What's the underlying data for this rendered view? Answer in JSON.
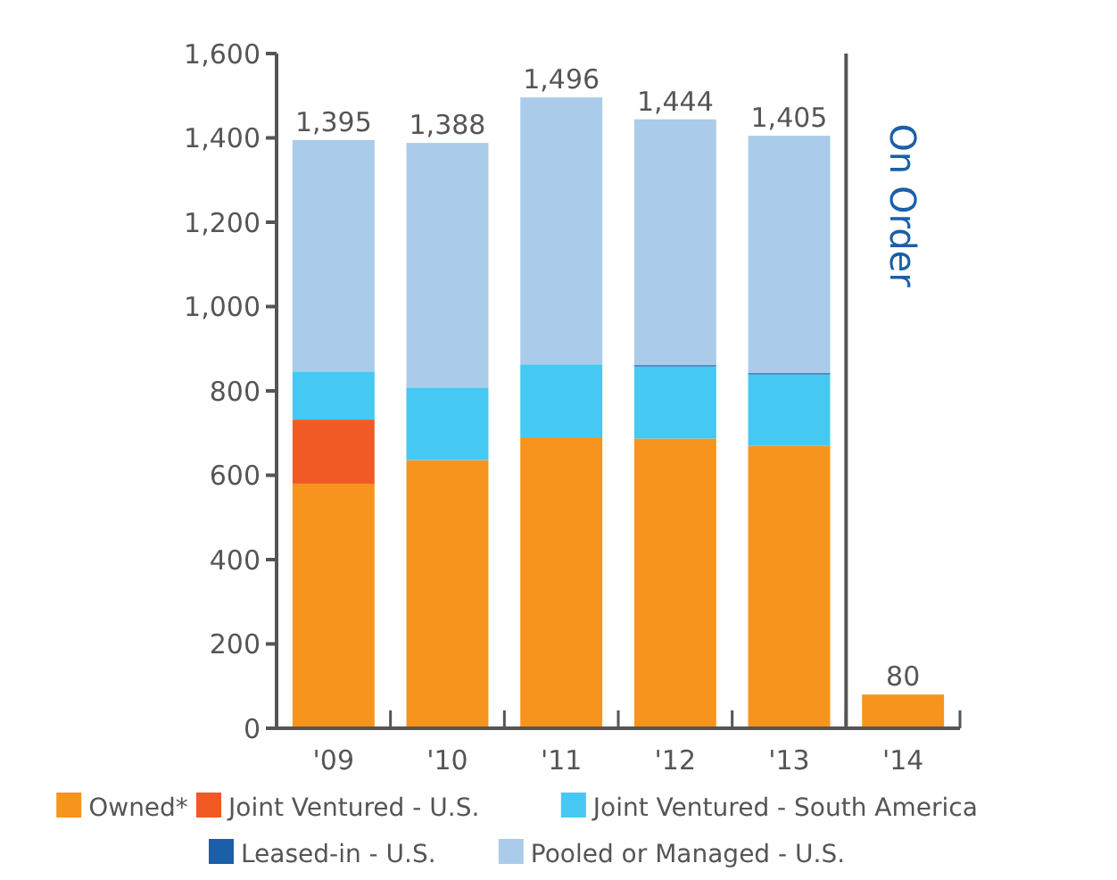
{
  "chart_data": {
    "type": "bar",
    "stacked": true,
    "categories": [
      "'09",
      "'10",
      "'11",
      "'12",
      "'13",
      "'14"
    ],
    "series": [
      {
        "name": "Owned*",
        "color": "#f7941d",
        "values": [
          580,
          636,
          690,
          687,
          670,
          80
        ]
      },
      {
        "name": "Joint Ventured - U.S.",
        "color": "#f15a24",
        "values": [
          152,
          0,
          0,
          0,
          0,
          0
        ]
      },
      {
        "name": "Joint Ventured - South America",
        "color": "#45c8f2",
        "values": [
          114,
          172,
          173,
          171,
          169,
          0
        ]
      },
      {
        "name": "Leased-in - U.S.",
        "color": "#1b5fa8",
        "values": [
          0,
          0,
          0,
          3,
          3,
          0
        ]
      },
      {
        "name": "Pooled or Managed - U.S.",
        "color": "#abcbea",
        "values": [
          549,
          580,
          633,
          583,
          563,
          0
        ]
      }
    ],
    "totals": [
      "1,395",
      "1,388",
      "1,496",
      "1,444",
      "1,405",
      "80"
    ],
    "ylim": [
      0,
      1600
    ],
    "yticks": [
      0,
      {
        "value": 200,
        "label": "200"
      },
      {
        "value": 400,
        "label": "400"
      },
      {
        "value": 600,
        "label": "600"
      },
      {
        "value": 800,
        "label": "800"
      },
      {
        "value": 1000,
        "label": "1,000"
      },
      {
        "value": 1200,
        "label": "1,200"
      },
      {
        "value": 1400,
        "label": "1,400"
      },
      {
        "value": 1600,
        "label": "1,600"
      }
    ],
    "annotations": [
      "On Order"
    ],
    "grid": false,
    "legend": "bottom"
  }
}
